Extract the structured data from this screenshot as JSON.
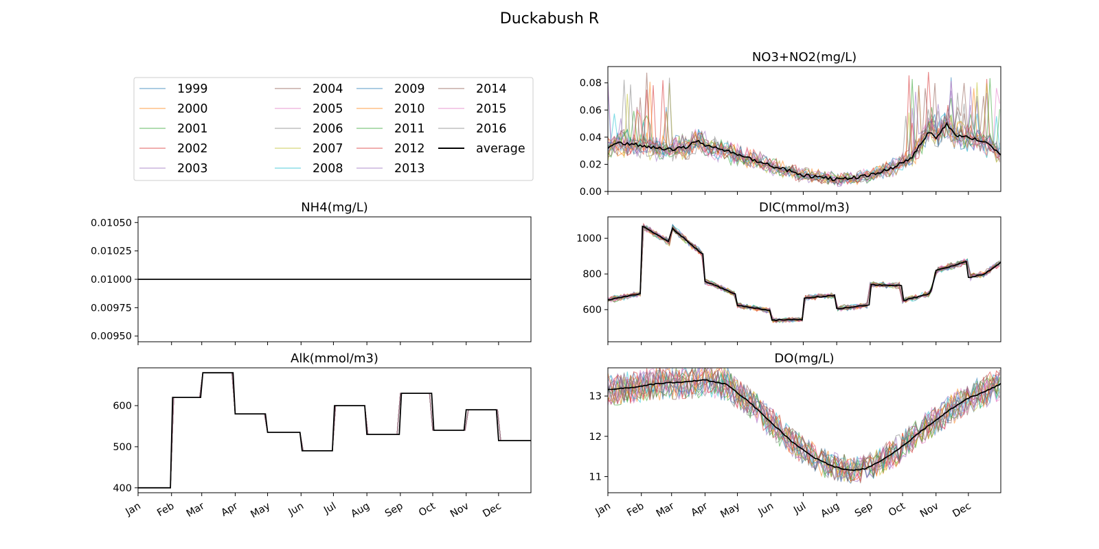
{
  "figure_title": "Duckabush R",
  "legend": {
    "entries": [
      "1999",
      "2000",
      "2001",
      "2002",
      "2003",
      "2004",
      "2005",
      "2006",
      "2007",
      "2008",
      "2009",
      "2010",
      "2011",
      "2012",
      "2013",
      "2014",
      "2015",
      "2016",
      "average"
    ],
    "colors": [
      "#1f77b4",
      "#ff7f0e",
      "#2ca02c",
      "#d62728",
      "#9467bd",
      "#8c564b",
      "#e377c2",
      "#7f7f7f",
      "#bcbd22",
      "#17becf",
      "#1f77b4",
      "#ff7f0e",
      "#2ca02c",
      "#d62728",
      "#9467bd",
      "#8c564b",
      "#e377c2",
      "#7f7f7f",
      "#000000"
    ],
    "columns": 4
  },
  "chart_data": [
    {
      "id": "no3",
      "type": "line",
      "title": "NO3+NO2(mg/L)",
      "ylim": [
        0,
        0.092
      ],
      "yticks": [
        0.0,
        0.02,
        0.04,
        0.06,
        0.08
      ],
      "ytick_labels": [
        "0.00",
        "0.02",
        "0.04",
        "0.06",
        "0.08"
      ],
      "xlabels_shown": false,
      "average_profile": [
        [
          1,
          0.032
        ],
        [
          10,
          0.036
        ],
        [
          20,
          0.035
        ],
        [
          32,
          0.034
        ],
        [
          45,
          0.032
        ],
        [
          60,
          0.031
        ],
        [
          75,
          0.033
        ],
        [
          85,
          0.038
        ],
        [
          91,
          0.034
        ],
        [
          110,
          0.03
        ],
        [
          130,
          0.025
        ],
        [
          152,
          0.019
        ],
        [
          170,
          0.015
        ],
        [
          182,
          0.012
        ],
        [
          200,
          0.01
        ],
        [
          213,
          0.009
        ],
        [
          228,
          0.01
        ],
        [
          244,
          0.012
        ],
        [
          260,
          0.016
        ],
        [
          274,
          0.021
        ],
        [
          283,
          0.025
        ],
        [
          290,
          0.035
        ],
        [
          300,
          0.045
        ],
        [
          305,
          0.04
        ],
        [
          315,
          0.05
        ],
        [
          322,
          0.042
        ],
        [
          335,
          0.04
        ],
        [
          345,
          0.038
        ],
        [
          355,
          0.034
        ],
        [
          365,
          0.027
        ]
      ],
      "noise": 0.2,
      "spikes": {
        "windows": [
          [
            1,
            60
          ],
          [
            275,
            365
          ]
        ],
        "prob": 0.08,
        "max": 0.088
      },
      "jitter": 0.004
    },
    {
      "id": "dic",
      "type": "line",
      "title": "DIC(mmol/m3)",
      "ylim": [
        420,
        1120
      ],
      "yticks": [
        600,
        800,
        1000
      ],
      "ytick_labels": [
        "600",
        "800",
        "1000"
      ],
      "xlabels_shown": false,
      "average_profile": [
        [
          1,
          655
        ],
        [
          31,
          690
        ],
        [
          32,
          1070
        ],
        [
          58,
          980
        ],
        [
          60,
          1060
        ],
        [
          90,
          905
        ],
        [
          91,
          760
        ],
        [
          120,
          685
        ],
        [
          121,
          625
        ],
        [
          151,
          595
        ],
        [
          152,
          540
        ],
        [
          181,
          545
        ],
        [
          182,
          665
        ],
        [
          212,
          680
        ],
        [
          213,
          605
        ],
        [
          243,
          625
        ],
        [
          244,
          740
        ],
        [
          273,
          735
        ],
        [
          274,
          650
        ],
        [
          300,
          690
        ],
        [
          305,
          820
        ],
        [
          334,
          870
        ],
        [
          335,
          780
        ],
        [
          350,
          800
        ],
        [
          365,
          865
        ]
      ],
      "noise": 0.015,
      "jitter": 10
    },
    {
      "id": "nh4",
      "type": "line",
      "title": "NH4(mg/L)",
      "ylim": [
        0.00945,
        0.01055
      ],
      "yticks": [
        0.0095,
        0.00975,
        0.01,
        0.01025,
        0.0105
      ],
      "ytick_labels": [
        "0.00950",
        "0.00975",
        "0.01000",
        "0.01025",
        "0.01050"
      ],
      "xlabels_shown": false,
      "average_profile": [
        [
          1,
          0.01
        ],
        [
          365,
          0.01
        ]
      ],
      "noise": 0,
      "jitter": 0
    },
    {
      "id": "do",
      "type": "line",
      "title": "DO(mg/L)",
      "ylim": [
        10.6,
        13.7
      ],
      "yticks": [
        11,
        12,
        13
      ],
      "ytick_labels": [
        "11",
        "12",
        "13"
      ],
      "xlabels_shown": true,
      "average_profile": [
        [
          1,
          13.15
        ],
        [
          20,
          13.2
        ],
        [
          45,
          13.3
        ],
        [
          70,
          13.35
        ],
        [
          91,
          13.4
        ],
        [
          110,
          13.3
        ],
        [
          130,
          12.9
        ],
        [
          150,
          12.4
        ],
        [
          170,
          11.9
        ],
        [
          190,
          11.5
        ],
        [
          210,
          11.25
        ],
        [
          225,
          11.15
        ],
        [
          240,
          11.2
        ],
        [
          255,
          11.4
        ],
        [
          274,
          11.75
        ],
        [
          290,
          12.1
        ],
        [
          305,
          12.4
        ],
        [
          320,
          12.7
        ],
        [
          335,
          12.95
        ],
        [
          350,
          13.1
        ],
        [
          365,
          13.3
        ]
      ],
      "noise": 0.03,
      "jitter": 0.05
    },
    {
      "id": "alk",
      "type": "line",
      "title": "Alk(mmol/m3)",
      "ylim": [
        388,
        692
      ],
      "yticks": [
        400,
        500,
        600
      ],
      "ytick_labels": [
        "400",
        "500",
        "600"
      ],
      "xlabels_shown": true,
      "average_profile": [
        [
          1,
          400
        ],
        [
          31,
          400
        ],
        [
          32,
          620
        ],
        [
          59,
          620
        ],
        [
          60,
          680
        ],
        [
          90,
          680
        ],
        [
          91,
          580
        ],
        [
          120,
          580
        ],
        [
          121,
          535
        ],
        [
          151,
          535
        ],
        [
          152,
          490
        ],
        [
          181,
          490
        ],
        [
          182,
          600
        ],
        [
          212,
          600
        ],
        [
          213,
          530
        ],
        [
          243,
          530
        ],
        [
          244,
          630
        ],
        [
          273,
          630
        ],
        [
          274,
          540
        ],
        [
          304,
          540
        ],
        [
          305,
          590
        ],
        [
          334,
          590
        ],
        [
          335,
          515
        ],
        [
          365,
          515
        ]
      ],
      "noise": 0,
      "jitter": 0
    }
  ],
  "x_axis": {
    "labels": [
      "Jan",
      "Feb",
      "Mar",
      "Apr",
      "May",
      "Jun",
      "Jul",
      "Aug",
      "Sep",
      "Oct",
      "Nov",
      "Dec"
    ],
    "month_start_days": [
      1,
      32,
      60,
      91,
      121,
      152,
      182,
      213,
      244,
      274,
      305,
      335
    ],
    "xlim": [
      1,
      365
    ]
  }
}
